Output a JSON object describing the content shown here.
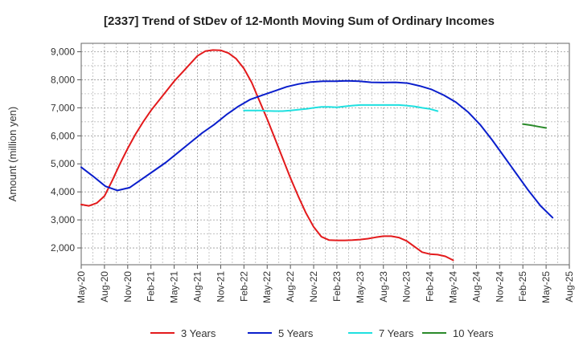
{
  "chart_data": {
    "type": "line",
    "title": "[2337]  Trend of StDev of 12-Month Moving Sum of Ordinary Incomes",
    "xlabel": "",
    "ylabel": "Amount (million yen)",
    "ylim": [
      1400,
      9300
    ],
    "yticks": [
      2000,
      3000,
      4000,
      5000,
      6000,
      7000,
      8000,
      9000
    ],
    "ytick_labels": [
      "2,000",
      "3,000",
      "4,000",
      "5,000",
      "6,000",
      "7,000",
      "8,000",
      "9,000"
    ],
    "xtick_labels": [
      "May-20",
      "Aug-20",
      "Nov-20",
      "Feb-21",
      "May-21",
      "Aug-21",
      "Nov-21",
      "Feb-22",
      "May-22",
      "Aug-22",
      "Nov-22",
      "Feb-23",
      "May-23",
      "Aug-23",
      "Nov-23",
      "Feb-24",
      "May-24",
      "Aug-24",
      "Nov-24",
      "Feb-25",
      "May-25",
      "Aug-25"
    ],
    "grid": true,
    "legend_position": "bottom",
    "series": [
      {
        "name": "3 Years",
        "color": "#e31a1c",
        "values": [
          [
            0,
            3550
          ],
          [
            1,
            3500
          ],
          [
            2,
            3600
          ],
          [
            3,
            3850
          ],
          [
            4,
            4400
          ],
          [
            5,
            5000
          ],
          [
            6,
            5550
          ],
          [
            7,
            6050
          ],
          [
            8,
            6500
          ],
          [
            9,
            6900
          ],
          [
            10,
            7250
          ],
          [
            11,
            7600
          ],
          [
            12,
            7950
          ],
          [
            13,
            8250
          ],
          [
            14,
            8550
          ],
          [
            15,
            8850
          ],
          [
            16,
            9020
          ],
          [
            17,
            9060
          ],
          [
            18,
            9050
          ],
          [
            19,
            8950
          ],
          [
            20,
            8750
          ],
          [
            21,
            8400
          ],
          [
            22,
            7900
          ],
          [
            23,
            7250
          ],
          [
            24,
            6600
          ],
          [
            25,
            5900
          ],
          [
            26,
            5200
          ],
          [
            27,
            4500
          ],
          [
            28,
            3850
          ],
          [
            29,
            3250
          ],
          [
            30,
            2750
          ],
          [
            31,
            2400
          ],
          [
            32,
            2280
          ],
          [
            33,
            2270
          ],
          [
            34,
            2270
          ],
          [
            35,
            2280
          ],
          [
            36,
            2300
          ],
          [
            37,
            2330
          ],
          [
            38,
            2380
          ],
          [
            39,
            2420
          ],
          [
            40,
            2420
          ],
          [
            41,
            2370
          ],
          [
            42,
            2250
          ],
          [
            43,
            2050
          ],
          [
            44,
            1850
          ],
          [
            45,
            1780
          ],
          [
            46,
            1760
          ],
          [
            47,
            1700
          ],
          [
            48,
            1560
          ]
        ]
      },
      {
        "name": "5 Years",
        "color": "#0a1ecc",
        "values": [
          [
            0,
            4880
          ],
          [
            1,
            4550
          ],
          [
            2,
            4200
          ],
          [
            3,
            4050
          ],
          [
            4,
            4150
          ],
          [
            5,
            4450
          ],
          [
            6,
            4750
          ],
          [
            7,
            5050
          ],
          [
            8,
            5400
          ],
          [
            9,
            5750
          ],
          [
            10,
            6100
          ],
          [
            11,
            6400
          ],
          [
            12,
            6750
          ],
          [
            13,
            7050
          ],
          [
            14,
            7300
          ],
          [
            15,
            7450
          ],
          [
            16,
            7600
          ],
          [
            17,
            7750
          ],
          [
            18,
            7850
          ],
          [
            19,
            7920
          ],
          [
            20,
            7950
          ],
          [
            21,
            7950
          ],
          [
            22,
            7960
          ],
          [
            23,
            7950
          ],
          [
            24,
            7910
          ],
          [
            25,
            7900
          ],
          [
            26,
            7910
          ],
          [
            27,
            7880
          ],
          [
            28,
            7780
          ],
          [
            29,
            7650
          ],
          [
            30,
            7450
          ],
          [
            31,
            7200
          ],
          [
            32,
            6850
          ],
          [
            33,
            6400
          ],
          [
            34,
            5850
          ],
          [
            35,
            5250
          ],
          [
            36,
            4650
          ],
          [
            37,
            4050
          ],
          [
            38,
            3500
          ],
          [
            39,
            3080
          ]
        ]
      },
      {
        "name": "7 Years",
        "color": "#1fe0e0",
        "values": [
          [
            0,
            6900
          ],
          [
            1,
            6900
          ],
          [
            2,
            6900
          ],
          [
            3,
            6890
          ],
          [
            4,
            6880
          ],
          [
            5,
            6880
          ],
          [
            6,
            6900
          ],
          [
            7,
            6930
          ],
          [
            8,
            6960
          ],
          [
            9,
            7000
          ],
          [
            10,
            7030
          ],
          [
            11,
            7030
          ],
          [
            12,
            7020
          ],
          [
            13,
            7050
          ],
          [
            14,
            7080
          ],
          [
            15,
            7100
          ],
          [
            16,
            7100
          ],
          [
            17,
            7100
          ],
          [
            18,
            7100
          ],
          [
            19,
            7100
          ],
          [
            20,
            7100
          ],
          [
            21,
            7080
          ],
          [
            22,
            7050
          ],
          [
            23,
            7000
          ],
          [
            24,
            6960
          ],
          [
            25,
            6880
          ]
        ]
      },
      {
        "name": "10 Years",
        "color": "#2a8a2a",
        "values": [
          [
            0,
            6420
          ],
          [
            1,
            6380
          ],
          [
            2,
            6330
          ],
          [
            3,
            6280
          ]
        ]
      }
    ]
  }
}
